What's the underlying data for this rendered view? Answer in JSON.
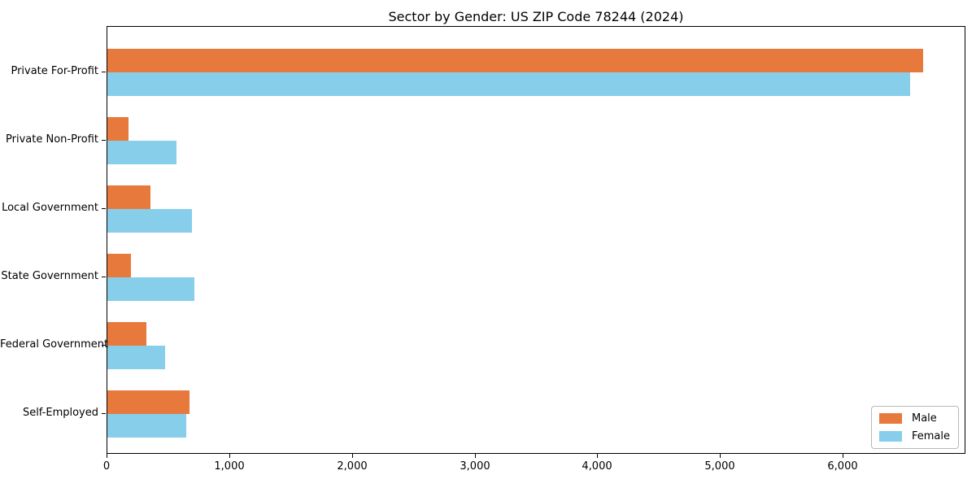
{
  "title": "Sector by Gender: US ZIP Code 78244 (2024)",
  "chart_data": {
    "type": "bar",
    "orientation": "horizontal",
    "title": "Sector by Gender: US ZIP Code 78244 (2024)",
    "xlabel": "",
    "ylabel": "",
    "categories": [
      "Private For-Profit",
      "Private Non-Profit",
      "Local Government",
      "State Government",
      "Federal Government",
      "Self-Employed"
    ],
    "series": [
      {
        "name": "Male",
        "color": "#e8793d",
        "values": [
          6650,
          170,
          350,
          190,
          320,
          670
        ]
      },
      {
        "name": "Female",
        "color": "#87ceeb",
        "values": [
          6540,
          565,
          690,
          710,
          470,
          645
        ]
      }
    ],
    "xlim": [
      0,
      7000
    ],
    "xticks": {
      "values": [
        0,
        1000,
        2000,
        3000,
        4000,
        5000,
        6000
      ],
      "labels": [
        "0",
        "1,000",
        "2,000",
        "3,000",
        "4,000",
        "5,000",
        "6,000"
      ]
    },
    "grid": false,
    "legend": {
      "position": "lower right",
      "entries": [
        "Male",
        "Female"
      ]
    }
  },
  "colors": {
    "axis": "#000000",
    "background": "#ffffff",
    "legend_border": "#b8b8b8"
  }
}
